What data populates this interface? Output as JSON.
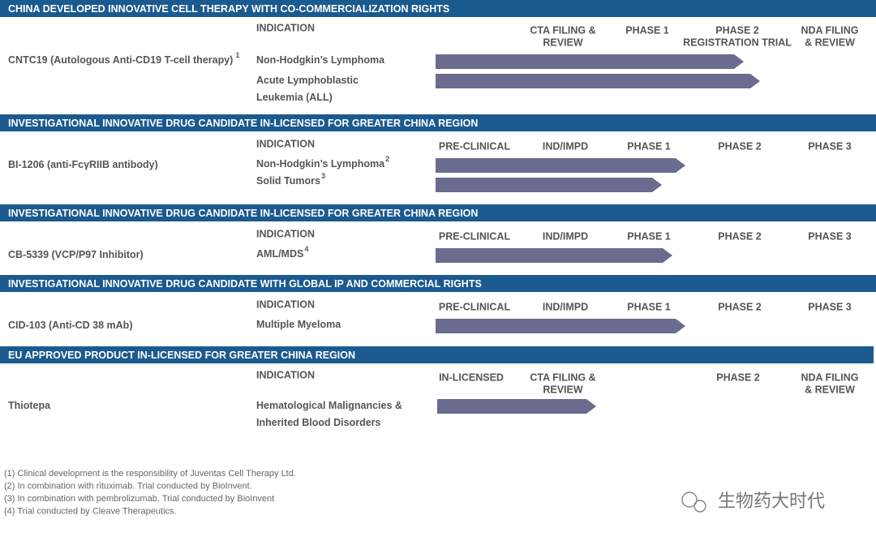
{
  "sections": [
    {
      "header": "CHINA DEVELOPED INNOVATIVE CELL THERAPY WITH CO-COMMERCIALIZATION RIGHTS",
      "indication_label": "INDICATION",
      "stages": [
        [
          "CTA FILING &",
          "REVIEW"
        ],
        [
          "PHASE 1"
        ],
        [
          "PHASE 2",
          "REGISTRATION TRIAL"
        ],
        [
          "NDA FILING",
          "& REVIEW"
        ]
      ],
      "drug": {
        "name": "CNTC19 (Autologous Anti-CD19 T-cell therapy)",
        "note": "1"
      },
      "indications": [
        {
          "lines": [
            "Non-Hodgkin’s Lymphoma"
          ]
        },
        {
          "lines": [
            "Acute Lymphoblastic",
            "Leukemia (ALL)"
          ]
        }
      ]
    },
    {
      "header": "INVESTIGATIONAL INNOVATIVE DRUG CANDIDATE IN-LICENSED FOR GREATER CHINA REGION",
      "indication_label": "INDICATION",
      "stages": [
        [
          "PRE-CLINICAL"
        ],
        [
          "IND/IMPD"
        ],
        [
          "PHASE 1"
        ],
        [
          "PHASE 2"
        ],
        [
          "PHASE 3"
        ]
      ],
      "drug": {
        "name": "BI-1206 (anti-FcγRIIB antibody)"
      },
      "indications": [
        {
          "lines": [
            "Non-Hodgkin’s Lymphoma"
          ],
          "note": "2"
        },
        {
          "lines": [
            "Solid Tumors"
          ],
          "note": "3"
        }
      ]
    },
    {
      "header": "INVESTIGATIONAL INNOVATIVE DRUG CANDIDATE IN-LICENSED FOR GREATER CHINA REGION",
      "indication_label": "INDICATION",
      "stages": [
        [
          "PRE-CLINICAL"
        ],
        [
          "IND/IMPD"
        ],
        [
          "PHASE 1"
        ],
        [
          "PHASE 2"
        ],
        [
          "PHASE 3"
        ]
      ],
      "drug": {
        "name": "CB-5339 (VCP/P97 Inhibitor)"
      },
      "indications": [
        {
          "lines": [
            "AML/MDS"
          ],
          "note": "4"
        }
      ]
    },
    {
      "header": "INVESTIGATIONAL INNOVATIVE DRUG CANDIDATE WITH GLOBAL IP AND COMMERCIAL RIGHTS",
      "indication_label": "INDICATION",
      "stages": [
        [
          "PRE-CLINICAL"
        ],
        [
          "IND/IMPD"
        ],
        [
          "PHASE 1"
        ],
        [
          "PHASE 2"
        ],
        [
          "PHASE 3"
        ]
      ],
      "drug": {
        "name": "CID-103 (Anti-CD 38 mAb)"
      },
      "indications": [
        {
          "lines": [
            "Multiple Myeloma"
          ]
        }
      ]
    },
    {
      "header": "EU APPROVED PRODUCT IN-LICENSED FOR GREATER CHINA REGION",
      "indication_label": "INDICATION",
      "stages": [
        [
          "IN-LICENSED"
        ],
        [
          "CTA FILING &",
          "REVIEW"
        ],
        [
          "PHASE 2"
        ],
        [
          "NDA FILING",
          "& REVIEW"
        ]
      ],
      "drug": {
        "name": "Thiotepa"
      },
      "indications": [
        {
          "lines": [
            "Hematological Malignancies &",
            "Inherited Blood Disorders"
          ]
        }
      ]
    }
  ],
  "footnotes": [
    "(1) Clinical development is the responsibility of Juventas Cell Therapy Ltd.",
    "(2) In combination with rituximab. Trial conducted by BioInvent.",
    "(3) In combination with pembrolizumab. Trial conducted by BioInvent",
    "(4) Trial conducted by Cleave Therapeutics."
  ],
  "watermark": "生物药大时代"
}
